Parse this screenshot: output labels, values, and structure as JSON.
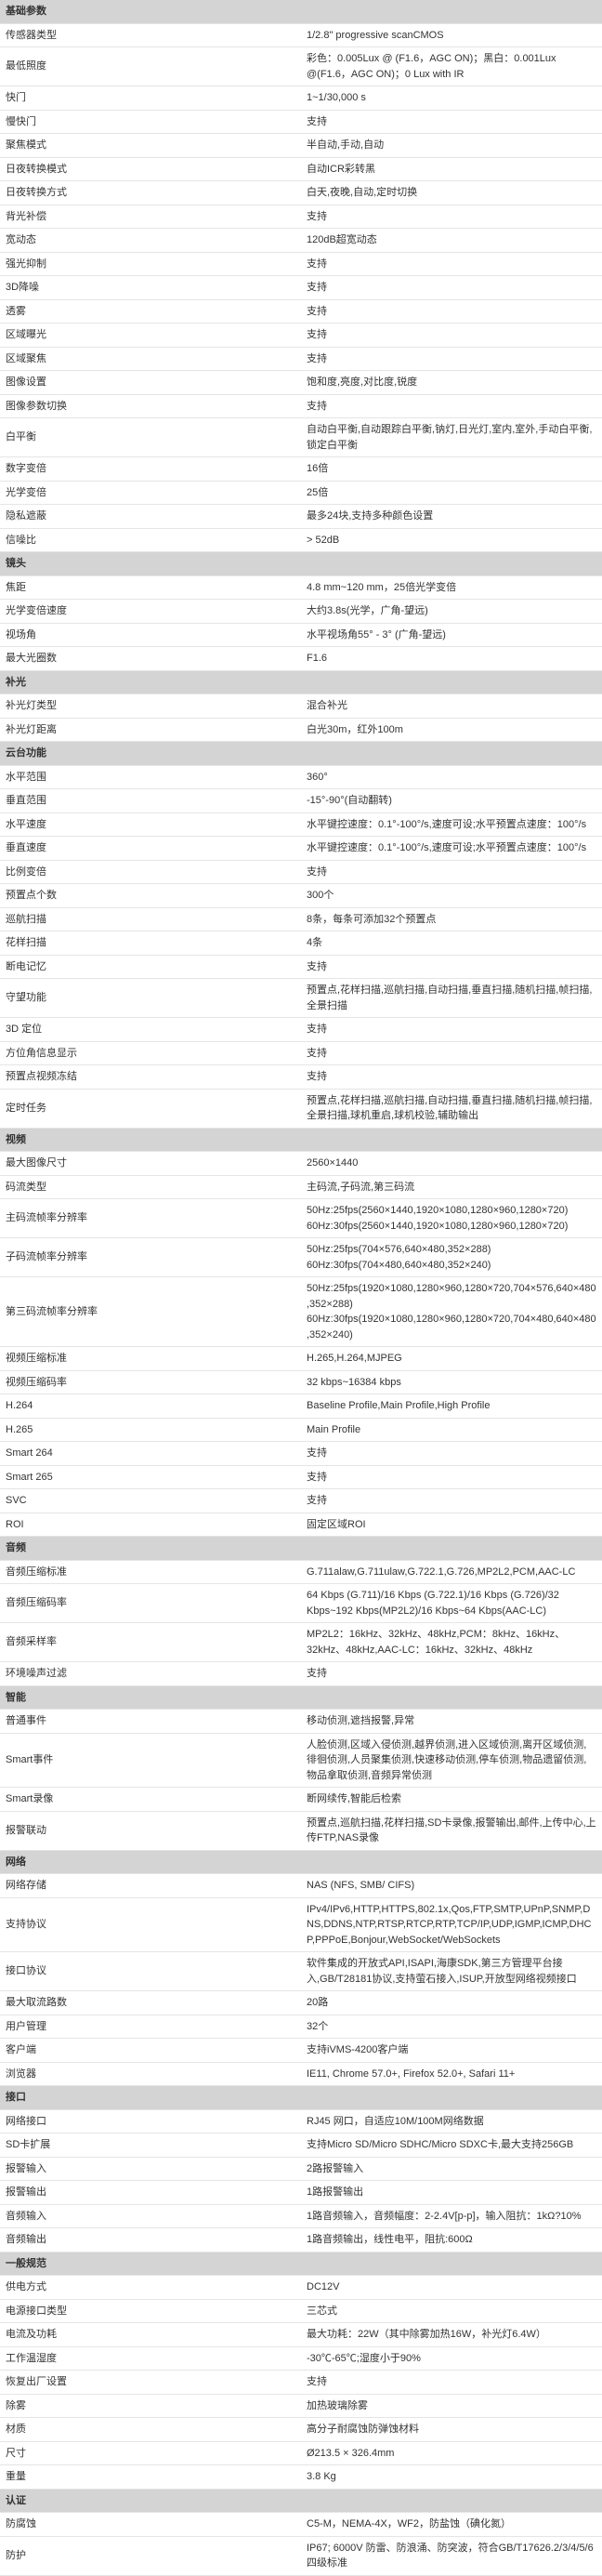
{
  "sections": [
    {
      "title": "基础参数",
      "rows": [
        [
          "传感器类型",
          "1/2.8\"  progressive scanCMOS"
        ],
        [
          "最低照度",
          "彩色：0.005Lux @ (F1.6，AGC ON)；黑白：0.001Lux @(F1.6，AGC ON)；0 Lux with IR"
        ],
        [
          "快门",
          "1~1/30,000 s"
        ],
        [
          "慢快门",
          "支持"
        ],
        [
          "聚焦模式",
          "半自动,手动,自动"
        ],
        [
          "日夜转换模式",
          "自动ICR彩转黑"
        ],
        [
          "日夜转换方式",
          "白天,夜晚,自动,定时切换"
        ],
        [
          "背光补偿",
          "支持"
        ],
        [
          "宽动态",
          "120dB超宽动态"
        ],
        [
          "强光抑制",
          "支持"
        ],
        [
          "3D降噪",
          "支持"
        ],
        [
          "透雾",
          "支持"
        ],
        [
          "区域曝光",
          "支持"
        ],
        [
          "区域聚焦",
          "支持"
        ],
        [
          "图像设置",
          "饱和度,亮度,对比度,锐度"
        ],
        [
          "图像参数切换",
          "支持"
        ],
        [
          "白平衡",
          "自动白平衡,自动跟踪白平衡,钠灯,日光灯,室内,室外,手动白平衡,锁定白平衡"
        ],
        [
          "数字变倍",
          "16倍"
        ],
        [
          "光学变倍",
          "25倍"
        ],
        [
          "隐私遮蔽",
          "最多24块,支持多种颜色设置"
        ],
        [
          "信噪比",
          "> 52dB"
        ]
      ]
    },
    {
      "title": "镜头",
      "rows": [
        [
          "焦距",
          "4.8 mm~120 mm，25倍光学变倍"
        ],
        [
          "光学变倍速度",
          "大约3.8s(光学，广角-望远)"
        ],
        [
          "视场角",
          "水平视场角55° - 3° (广角-望远)"
        ],
        [
          "最大光圈数",
          "F1.6"
        ]
      ]
    },
    {
      "title": "补光",
      "rows": [
        [
          "补光灯类型",
          "混合补光"
        ],
        [
          "补光灯距离",
          "白光30m，红外100m"
        ]
      ]
    },
    {
      "title": "云台功能",
      "rows": [
        [
          "水平范围",
          "360°"
        ],
        [
          "垂直范围",
          "-15°-90°(自动翻转)"
        ],
        [
          "水平速度",
          "水平键控速度：0.1°-100°/s,速度可设;水平预置点速度：100°/s"
        ],
        [
          "垂直速度",
          "水平键控速度：0.1°-100°/s,速度可设;水平预置点速度：100°/s"
        ],
        [
          "比例变倍",
          "支持"
        ],
        [
          "预置点个数",
          "300个"
        ],
        [
          "巡航扫描",
          "8条，每条可添加32个预置点"
        ],
        [
          "花样扫描",
          "4条"
        ],
        [
          "断电记忆",
          "支持"
        ],
        [
          "守望功能",
          "预置点,花样扫描,巡航扫描,自动扫描,垂直扫描,随机扫描,帧扫描,全景扫描"
        ],
        [
          "3D 定位",
          "支持"
        ],
        [
          "方位角信息显示",
          "支持"
        ],
        [
          "预置点视频冻结",
          "支持"
        ],
        [
          "定时任务",
          "预置点,花样扫描,巡航扫描,自动扫描,垂直扫描,随机扫描,帧扫描,全景扫描,球机重启,球机校验,辅助输出"
        ]
      ]
    },
    {
      "title": "视频",
      "rows": [
        [
          "最大图像尺寸",
          "2560×1440"
        ],
        [
          "码流类型",
          "主码流,子码流,第三码流"
        ],
        [
          "主码流帧率分辨率",
          "50Hz:25fps(2560×1440,1920×1080,1280×960,1280×720)<br>60Hz:30fps(2560×1440,1920×1080,1280×960,1280×720)"
        ],
        [
          "子码流帧率分辨率",
          "50Hz:25fps(704×576,640×480,352×288)<br>60Hz:30fps(704×480,640×480,352×240)"
        ],
        [
          "第三码流帧率分辨率",
          "50Hz:25fps(1920×1080,1280×960,1280×720,704×576,640×480,352×288)<br>60Hz:30fps(1920×1080,1280×960,1280×720,704×480,640×480,352×240)"
        ],
        [
          "视频压缩标准",
          "H.265,H.264,MJPEG"
        ],
        [
          "视频压缩码率",
          "32 kbps~16384 kbps"
        ],
        [
          "H.264",
          "Baseline Profile,Main Profile,High Profile"
        ],
        [
          "H.265",
          "Main Profile"
        ],
        [
          "Smart 264",
          "支持"
        ],
        [
          "Smart 265",
          "支持"
        ],
        [
          "SVC",
          "支持"
        ],
        [
          "ROI",
          "固定区域ROI"
        ]
      ]
    },
    {
      "title": "音频",
      "rows": [
        [
          "音频压缩标准",
          "G.711alaw,G.711ulaw,G.722.1,G.726,MP2L2,PCM,AAC-LC"
        ],
        [
          "音频压缩码率",
          "64 Kbps (G.711)/16 Kbps (G.722.1)/16 Kbps (G.726)/32 Kbps~192 Kbps(MP2L2)/16 Kbps~64 Kbps(AAC-LC)"
        ],
        [
          "音频采样率",
          "MP2L2：16kHz、32kHz、48kHz,PCM：8kHz、16kHz、32kHz、48kHz,AAC-LC：16kHz、32kHz、48kHz"
        ],
        [
          "环境噪声过滤",
          "支持"
        ]
      ]
    },
    {
      "title": "智能",
      "rows": [
        [
          "普通事件",
          "移动侦测,遮挡报警,异常"
        ],
        [
          "Smart事件",
          "人脸侦测,区域入侵侦测,越界侦测,进入区域侦测,离开区域侦测,徘徊侦测,人员聚集侦测,快速移动侦测,停车侦测,物品遗留侦测,物品拿取侦测,音频异常侦测"
        ],
        [
          "Smart录像",
          "断网续传,智能后检索"
        ],
        [
          "报警联动",
          "预置点,巡航扫描,花样扫描,SD卡录像,报警输出,邮件,上传中心,上传FTP,NAS录像"
        ]
      ]
    },
    {
      "title": "网络",
      "rows": [
        [
          "网络存储",
          "NAS (NFS, SMB/ CIFS)"
        ],
        [
          "支持协议",
          "IPv4/IPv6,HTTP,HTTPS,802.1x,Qos,FTP,SMTP,UPnP,SNMP,DNS,DDNS,NTP,RTSP,RTCP,RTP,TCP/IP,UDP,IGMP,ICMP,DHCP,PPPoE,Bonjour,WebSocket/WebSockets"
        ],
        [
          "接口协议",
          "软件集成的开放式API,ISAPI,海康SDK,第三方管理平台接入,GB/T28181协议,支持萤石接入,ISUP,开放型网络视频接口"
        ],
        [
          "最大取流路数",
          "20路"
        ],
        [
          "用户管理",
          "32个"
        ],
        [
          "客户端",
          "支持iVMS-4200客户端"
        ],
        [
          "浏览器",
          "IE11, Chrome 57.0+, Firefox 52.0+, Safari 11+"
        ]
      ]
    },
    {
      "title": "接口",
      "rows": [
        [
          "网络接口",
          "RJ45 网口，自适应10M/100M网络数据"
        ],
        [
          "SD卡扩展",
          "支持Micro SD/Micro SDHC/Micro SDXC卡,最大支持256GB"
        ],
        [
          "报警输入",
          "2路报警输入"
        ],
        [
          "报警输出",
          "1路报警输出"
        ],
        [
          "音频输入",
          "1路音频输入，音频幅度：2-2.4V[p-p]，输入阻抗：1kΩ?10%"
        ],
        [
          "音频输出",
          "1路音频输出，线性电平，阻抗:600Ω"
        ]
      ]
    },
    {
      "title": "一般规范",
      "rows": [
        [
          "供电方式",
          "DC12V"
        ],
        [
          "电源接口类型",
          "三芯式"
        ],
        [
          "电流及功耗",
          "最大功耗：22W（其中除雾加热16W，补光灯6.4W）"
        ],
        [
          "工作温湿度",
          "-30℃-65℃;湿度小于90%"
        ],
        [
          "恢复出厂设置",
          "支持"
        ],
        [
          "除雾",
          "加热玻璃除雾"
        ],
        [
          "材质",
          "高分子耐腐蚀防弹蚀材料"
        ],
        [
          "尺寸",
          "Ø213.5 × 326.4mm"
        ],
        [
          "重量",
          "3.8 Kg"
        ]
      ]
    },
    {
      "title": "认证",
      "rows": [
        [
          "防腐蚀",
          "C5-M，NEMA-4X，WF2，防盐蚀（碘化氮）"
        ],
        [
          "防护",
          "IP67; 6000V 防雷、防浪涌、防突波，符合GB/T17626.2/3/4/5/6四级标准"
        ]
      ]
    }
  ]
}
